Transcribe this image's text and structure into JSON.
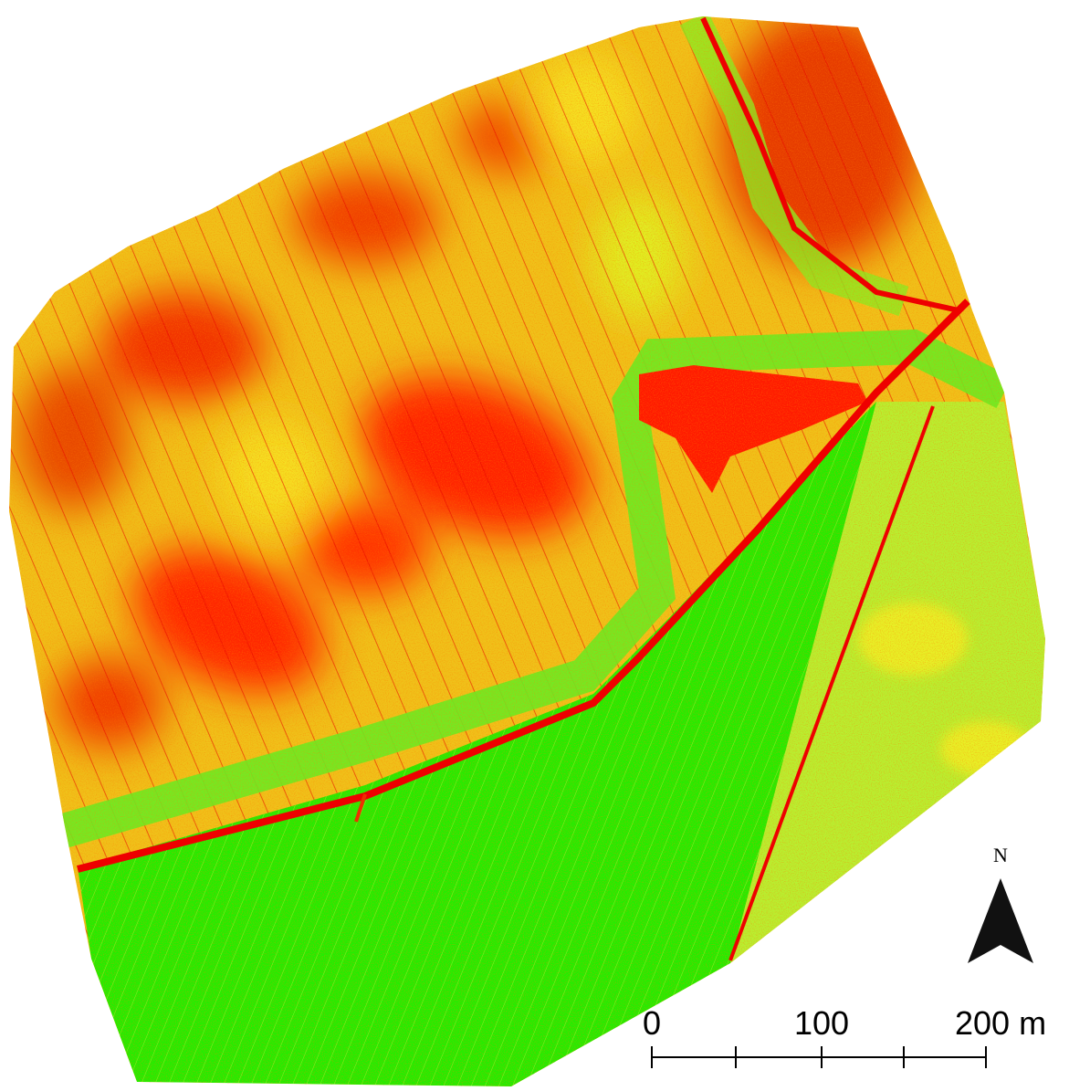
{
  "north_arrow": {
    "label": "N"
  },
  "scale_bar": {
    "labels": [
      "0",
      "100",
      "200 m"
    ]
  }
}
